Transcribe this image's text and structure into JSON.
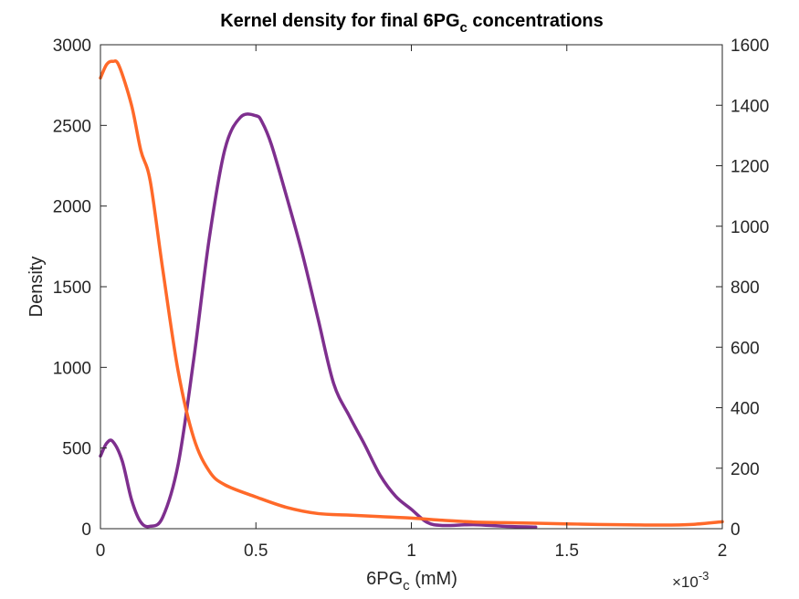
{
  "chart_data": {
    "type": "line",
    "title": "Kernel density for final 6PG",
    "title_subscript": "c",
    "title_suffix": " concentrations",
    "xlabel": "6PG",
    "xlabel_subscript": "c",
    "xlabel_suffix": " (mM)",
    "x_exponent_prefix": "×10",
    "x_exponent_power": "-3",
    "ylabel_left": "Density",
    "xlim": [
      0,
      0.002
    ],
    "ylim_left": [
      0,
      3000
    ],
    "ylim_right": [
      0,
      1600
    ],
    "x_ticks": [
      0,
      0.0005,
      0.001,
      0.0015,
      0.002
    ],
    "x_tick_labels": [
      "0",
      "0.5",
      "1",
      "1.5",
      "2"
    ],
    "y_left_ticks": [
      0,
      500,
      1000,
      1500,
      2000,
      2500,
      3000
    ],
    "y_left_tick_labels": [
      "0",
      "500",
      "1000",
      "1500",
      "2000",
      "2500",
      "3000"
    ],
    "y_right_ticks": [
      0,
      200,
      400,
      600,
      800,
      1000,
      1200,
      1400,
      1600
    ],
    "y_right_tick_labels": [
      "0",
      "200",
      "400",
      "600",
      "800",
      "1000",
      "1200",
      "1400",
      "1600"
    ],
    "grid": false,
    "box": true,
    "series": [
      {
        "axis": "left",
        "color": "#7E2F8E",
        "x": [
          0,
          2e-05,
          4e-05,
          7e-05,
          0.0001,
          0.00013,
          0.00016,
          0.0002,
          0.00025,
          0.0003,
          0.00035,
          0.0004,
          0.00045,
          0.0005,
          0.00052,
          0.00055,
          0.0006,
          0.00065,
          0.0007,
          0.00075,
          0.0008,
          0.00085,
          0.0009,
          0.00095,
          0.001,
          0.00105,
          0.0011,
          0.0012,
          0.0013,
          0.0014
        ],
        "y": [
          450,
          530,
          540,
          420,
          180,
          40,
          15,
          70,
          400,
          1050,
          1800,
          2350,
          2550,
          2560,
          2520,
          2380,
          2050,
          1700,
          1300,
          900,
          700,
          520,
          330,
          200,
          120,
          40,
          20,
          25,
          15,
          10
        ]
      },
      {
        "axis": "right",
        "color": "#FF6929",
        "x": [
          0,
          2e-05,
          4e-05,
          6e-05,
          0.0001,
          0.00013,
          0.00016,
          0.0002,
          0.00025,
          0.0003,
          0.00035,
          0.0004,
          0.0005,
          0.0006,
          0.0007,
          0.0008,
          0.0009,
          0.001,
          0.0011,
          0.0012,
          0.0013,
          0.0014,
          0.0015,
          0.0016,
          0.0017,
          0.0018,
          0.0019,
          0.002
        ],
        "y": [
          1490,
          1535,
          1545,
          1530,
          1400,
          1250,
          1150,
          860,
          520,
          300,
          190,
          145,
          105,
          70,
          50,
          45,
          40,
          35,
          28,
          22,
          20,
          18,
          16,
          14,
          13,
          12,
          14,
          23
        ]
      }
    ]
  }
}
